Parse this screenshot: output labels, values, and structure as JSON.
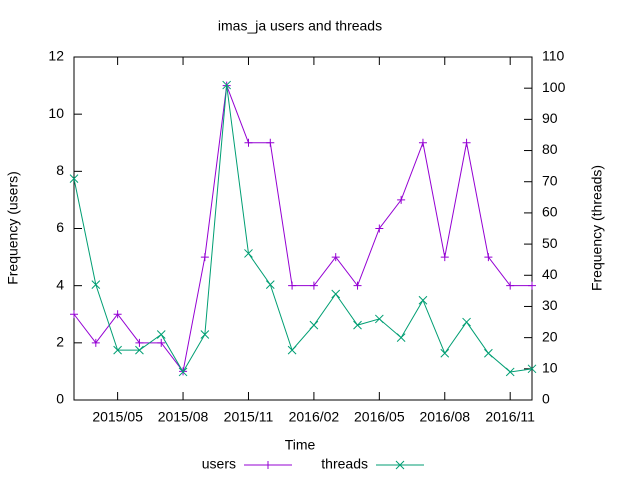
{
  "chart_data": {
    "type": "line",
    "title": "imas_ja users and threads",
    "xlabel": "Time",
    "ylabel": "Frequency (users)",
    "y2label": "Frequency (threads)",
    "x": [
      "2015/03",
      "2015/04",
      "2015/05",
      "2015/06",
      "2015/07",
      "2015/08",
      "2015/09",
      "2015/10",
      "2015/11",
      "2015/12",
      "2016/01",
      "2016/02",
      "2016/03",
      "2016/04",
      "2016/05",
      "2016/06",
      "2016/07",
      "2016/08",
      "2016/09",
      "2016/10",
      "2016/11",
      "2016/12"
    ],
    "xlim": [
      "2015/03",
      "2016/12"
    ],
    "xticks": [
      "2015/05",
      "2015/08",
      "2015/11",
      "2016/02",
      "2016/05",
      "2016/08",
      "2016/11"
    ],
    "ylim": [
      0,
      12
    ],
    "yticks": [
      0,
      2,
      4,
      6,
      8,
      10,
      12
    ],
    "y2lim": [
      0,
      110
    ],
    "y2ticks": [
      0,
      10,
      20,
      30,
      40,
      50,
      60,
      70,
      80,
      90,
      100,
      110
    ],
    "legend": "bottom",
    "series": [
      {
        "name": "users",
        "color": "#9400d3",
        "marker": "plus",
        "values": [
          3,
          2,
          3,
          2,
          2,
          1,
          5,
          11,
          9,
          9,
          4,
          4,
          5,
          4,
          6,
          7,
          9,
          5,
          9,
          5,
          4,
          4
        ]
      },
      {
        "name": "threads",
        "color": "#009e73",
        "marker": "cross",
        "axis": "y2",
        "values": [
          71,
          37,
          16,
          16,
          21,
          9,
          21,
          101,
          47,
          37,
          16,
          24,
          34,
          24,
          26,
          20,
          32,
          15,
          25,
          15,
          9,
          10
        ]
      }
    ]
  }
}
